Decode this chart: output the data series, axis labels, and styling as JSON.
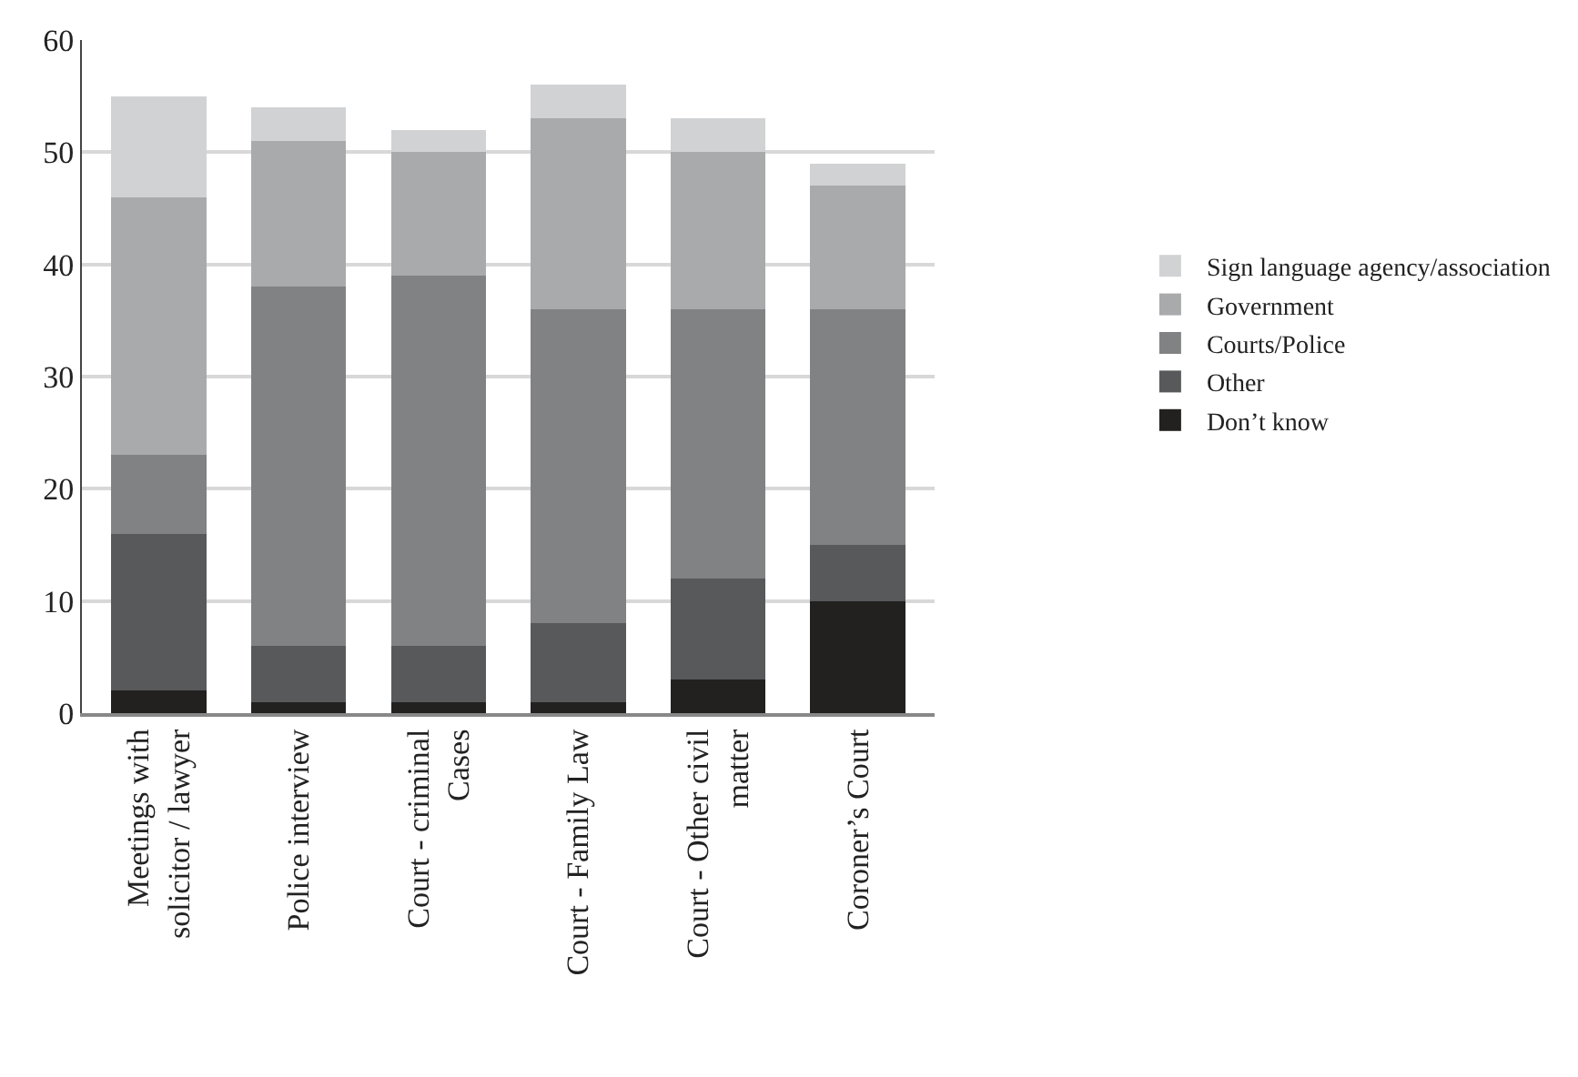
{
  "chart_data": {
    "type": "bar",
    "stacked": true,
    "categories": [
      "Meetings with\nsolicitor / lawyer",
      "Police interview",
      "Court - criminal\nCases",
      "Court - Family Law",
      "Court - Other civil\nmatter",
      "Coroner’s Court"
    ],
    "series": [
      {
        "name": "Don’t know",
        "color": "#222120",
        "values": [
          2,
          1,
          1,
          1,
          3,
          10
        ]
      },
      {
        "name": "Other",
        "color": "#58595b",
        "values": [
          14,
          5,
          5,
          7,
          9,
          5
        ]
      },
      {
        "name": "Courts/Police",
        "color": "#818284",
        "values": [
          7,
          32,
          33,
          28,
          24,
          21
        ]
      },
      {
        "name": "Government",
        "color": "#a9aaac",
        "values": [
          23,
          13,
          11,
          17,
          14,
          11
        ]
      },
      {
        "name": "Sign language agency/association",
        "color": "#d1d2d4",
        "values": [
          9,
          3,
          2,
          3,
          3,
          2
        ]
      }
    ],
    "ylim": [
      0,
      60
    ],
    "yticks": [
      0,
      10,
      20,
      30,
      40,
      50,
      60
    ],
    "grid": "y",
    "legend": "right"
  }
}
